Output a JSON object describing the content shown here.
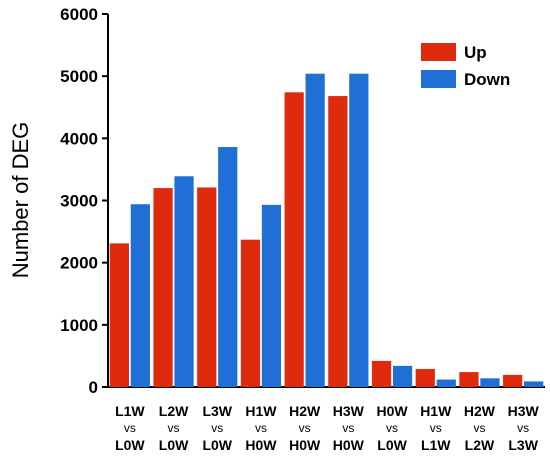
{
  "chart_data": {
    "type": "bar",
    "title": "",
    "xlabel": "",
    "ylabel": "Number of DEG",
    "ylim": [
      0,
      6000
    ],
    "yticks": [
      "0",
      "1000",
      "2000",
      "3000",
      "4000",
      "5000",
      "6000"
    ],
    "categories": [
      {
        "top": "L1W",
        "mid": "vs",
        "bottom": "L0W"
      },
      {
        "top": "L2W",
        "mid": "vs",
        "bottom": "L0W"
      },
      {
        "top": "L3W",
        "mid": "vs",
        "bottom": "L0W"
      },
      {
        "top": "H1W",
        "mid": "vs",
        "bottom": "H0W"
      },
      {
        "top": "H2W",
        "mid": "vs",
        "bottom": "H0W"
      },
      {
        "top": "H3W",
        "mid": "vs",
        "bottom": "H0W"
      },
      {
        "top": "H0W",
        "mid": "vs",
        "bottom": "L0W"
      },
      {
        "top": "H1W",
        "mid": "vs",
        "bottom": "L1W"
      },
      {
        "top": "H2W",
        "mid": "vs",
        "bottom": "L2W"
      },
      {
        "top": "H3W",
        "mid": "vs",
        "bottom": "L3W"
      }
    ],
    "series": [
      {
        "name": "Up",
        "color": "#e02a0e",
        "values": [
          2310,
          3200,
          3210,
          2370,
          4740,
          4680,
          420,
          290,
          240,
          195
        ]
      },
      {
        "name": "Down",
        "color": "#1f6fd6",
        "values": [
          2940,
          3390,
          3860,
          2930,
          5040,
          5040,
          340,
          120,
          140,
          90
        ]
      }
    ],
    "legend_position": "top-right",
    "grid": false
  }
}
